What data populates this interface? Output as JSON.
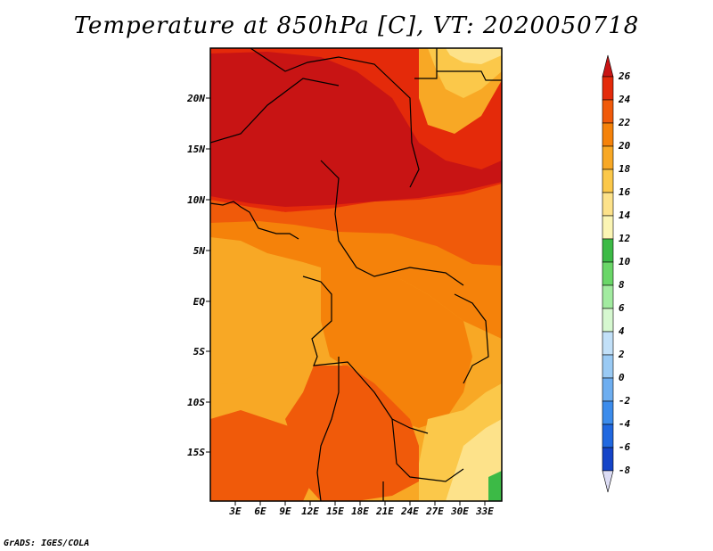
{
  "title": "Temperature at 850hPa [C], VT: 2020050718",
  "credit": "GrADS: IGES/COLA",
  "map": {
    "lat_labels": [
      "20N",
      "15N",
      "10N",
      "5N",
      "EQ",
      "5S",
      "10S",
      "15S"
    ],
    "lon_labels": [
      "3E",
      "6E",
      "9E",
      "12E",
      "15E",
      "18E",
      "21E",
      "24E",
      "27E",
      "30E",
      "33E"
    ],
    "field": "Temperature at 850hPa",
    "units": "C",
    "valid_time": "2020050718"
  },
  "colorbar": {
    "levels": [
      "26",
      "24",
      "22",
      "20",
      "18",
      "16",
      "14",
      "12",
      "10",
      "8",
      "6",
      "4",
      "2",
      "0",
      "-2",
      "-4",
      "-6",
      "-8"
    ],
    "colors": [
      "#c81414",
      "#e42a0a",
      "#f05a0a",
      "#f5820a",
      "#f8a825",
      "#fbc84a",
      "#fde28a",
      "#fbf5b4",
      "#3cba46",
      "#6ad668",
      "#a2eba0",
      "#d6f8d0",
      "#c2e0f8",
      "#9acaf4",
      "#6eaef0",
      "#3c8cec",
      "#2068e0",
      "#1444c8",
      "#0c2896",
      "#0a0a6e"
    ]
  }
}
